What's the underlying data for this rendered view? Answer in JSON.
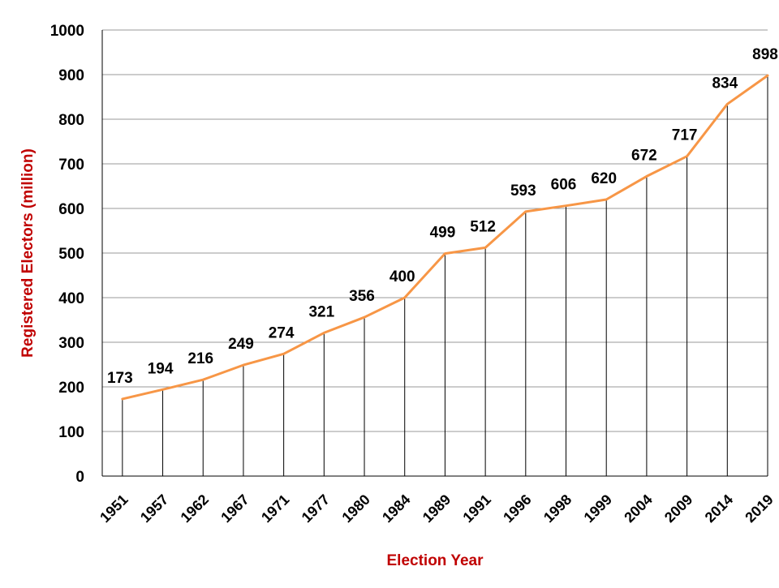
{
  "chart_data": {
    "type": "line",
    "title": "",
    "xlabel": "Election Year",
    "ylabel": "Registered Electors (million)",
    "ylim": [
      0,
      1000
    ],
    "ytick_step": 100,
    "grid": true,
    "drop_lines": true,
    "legend": "none",
    "categories": [
      "1951",
      "1957",
      "1962",
      "1967",
      "1971",
      "1977",
      "1980",
      "1984",
      "1989",
      "1991",
      "1996",
      "1998",
      "1999",
      "2004",
      "2009",
      "2014",
      "2019"
    ],
    "series": [
      {
        "values": [
          173,
          194,
          216,
          249,
          274,
          321,
          356,
          400,
          499,
          512,
          593,
          606,
          620,
          672,
          717,
          834,
          898
        ],
        "color": "#f79646"
      }
    ],
    "colors": {
      "axis_title": "#c00000",
      "line": "#f79646",
      "grid": "#999999",
      "drop_line": "#000000"
    }
  }
}
